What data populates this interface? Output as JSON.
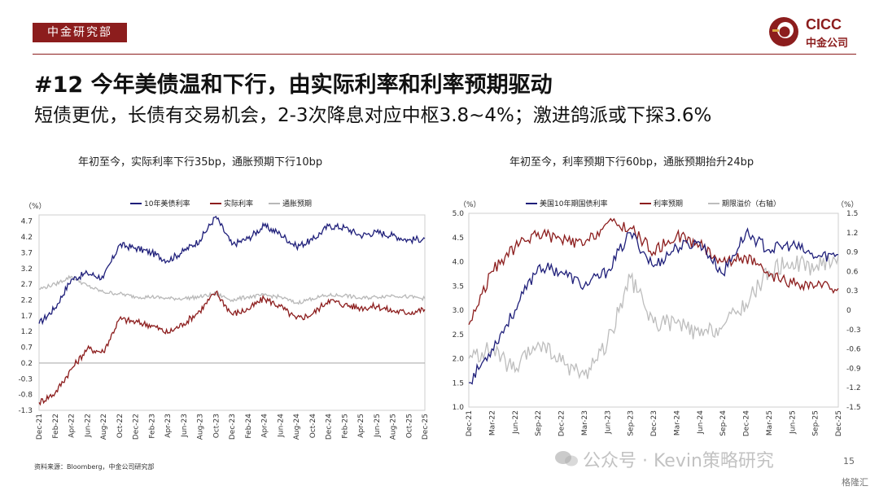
{
  "header": {
    "dept_label": "中金研究部",
    "logo_en": "CICC",
    "logo_cn": "中金公司",
    "brand_color": "#8c1d1d"
  },
  "title": "#12 今年美债温和下行，由实际利率和利率预期驱动",
  "subtitle": "短债更优，长债有交易机会，2-3次降息对应中枢3.8~4%；激进鸽派或下探3.6%",
  "source": "资料来源：Bloomberg，中金公司研究部",
  "watermark": "公众号 · Kevin策略研究",
  "watermark2": "格隆汇",
  "page_number": "15",
  "chart_data": [
    {
      "type": "line",
      "title": "年初至今，实际利率下行35bp，通胀预期下行10bp",
      "y_unit": "（%）",
      "ylim": [
        -1.3,
        4.9
      ],
      "yticks": [
        4.7,
        4.2,
        3.7,
        3.2,
        2.7,
        2.2,
        1.7,
        1.2,
        0.7,
        0.2,
        -0.3,
        -0.8,
        -1.3
      ],
      "x": [
        "Dec-21",
        "Feb-22",
        "Apr-22",
        "Jun-22",
        "Aug-22",
        "Oct-22",
        "Dec-22",
        "Feb-23",
        "Apr-23",
        "Jun-23",
        "Aug-23",
        "Oct-23",
        "Dec-23",
        "Feb-24",
        "Apr-24",
        "Jun-24",
        "Aug-24",
        "Oct-24",
        "Dec-24",
        "Feb-25",
        "Apr-25",
        "Jun-25",
        "Aug-25",
        "Oct-25",
        "Dec-25"
      ],
      "legend_position": "top",
      "grid": false,
      "series": [
        {
          "name": "10年美债利率",
          "color": "#1f1f7a",
          "values": [
            1.45,
            1.95,
            2.85,
            3.05,
            2.9,
            3.95,
            3.85,
            3.7,
            3.45,
            3.75,
            4.1,
            4.85,
            3.95,
            4.15,
            4.55,
            4.3,
            3.9,
            4.1,
            4.55,
            4.5,
            4.25,
            4.35,
            4.25,
            4.1,
            4.15
          ]
        },
        {
          "name": "实际利率",
          "color": "#8c1d1d",
          "values": [
            -1.05,
            -0.75,
            0.0,
            0.65,
            0.55,
            1.6,
            1.5,
            1.4,
            1.15,
            1.45,
            1.85,
            2.45,
            1.75,
            1.9,
            2.25,
            2.0,
            1.6,
            1.75,
            2.2,
            2.05,
            1.95,
            2.0,
            1.85,
            1.8,
            1.9
          ]
        },
        {
          "name": "通胀预期",
          "color": "#b8b8b8",
          "values": [
            2.55,
            2.7,
            2.95,
            2.65,
            2.45,
            2.4,
            2.3,
            2.3,
            2.25,
            2.25,
            2.3,
            2.4,
            2.2,
            2.3,
            2.35,
            2.3,
            2.1,
            2.25,
            2.35,
            2.35,
            2.25,
            2.3,
            2.35,
            2.3,
            2.25
          ]
        }
      ]
    },
    {
      "type": "line",
      "title": "年初至今，利率预期下行60bp，通胀预期抬升24bp",
      "y_unit": "（%）",
      "y2_unit": "（%）",
      "ylim": [
        1.0,
        5.0
      ],
      "y2lim": [
        -1.5,
        1.5
      ],
      "yticks": [
        5.0,
        4.5,
        4.0,
        3.5,
        3.0,
        2.5,
        2.0,
        1.5,
        1.0
      ],
      "y2ticks": [
        1.5,
        1.2,
        0.9,
        0.6,
        0.3,
        0,
        -0.3,
        -0.6,
        -0.9,
        -1.2,
        -1.5
      ],
      "x": [
        "Dec-21",
        "Mar-22",
        "Jun-22",
        "Sep-22",
        "Dec-22",
        "Mar-23",
        "Jun-23",
        "Sep-23",
        "Dec-23",
        "Mar-24",
        "Jun-24",
        "Sep-24",
        "Dec-24",
        "Mar-25",
        "Jun-25",
        "Sep-25",
        "Dec-25"
      ],
      "legend_position": "top",
      "grid": false,
      "series": [
        {
          "name": "美国10年期国债利率",
          "axis": "left",
          "color": "#1f1f7a",
          "values": [
            1.5,
            2.2,
            3.0,
            3.9,
            3.8,
            3.5,
            3.8,
            4.6,
            3.9,
            4.3,
            4.4,
            3.75,
            4.6,
            4.25,
            4.35,
            4.1,
            4.15
          ]
        },
        {
          "name": "利率预期",
          "axis": "left",
          "color": "#8c1d1d",
          "values": [
            2.7,
            3.8,
            4.3,
            4.6,
            4.45,
            4.35,
            4.8,
            4.7,
            4.2,
            4.55,
            4.35,
            4.0,
            4.1,
            3.7,
            3.55,
            3.5,
            3.45
          ]
        },
        {
          "name": "期限溢价（右轴）",
          "axis": "right",
          "color": "#bdbdbd",
          "values": [
            -0.75,
            -0.6,
            -0.95,
            -0.5,
            -0.8,
            -1.0,
            -0.5,
            0.5,
            -0.2,
            -0.2,
            -0.4,
            -0.25,
            0.1,
            0.6,
            0.75,
            0.65,
            0.85
          ]
        }
      ]
    }
  ]
}
